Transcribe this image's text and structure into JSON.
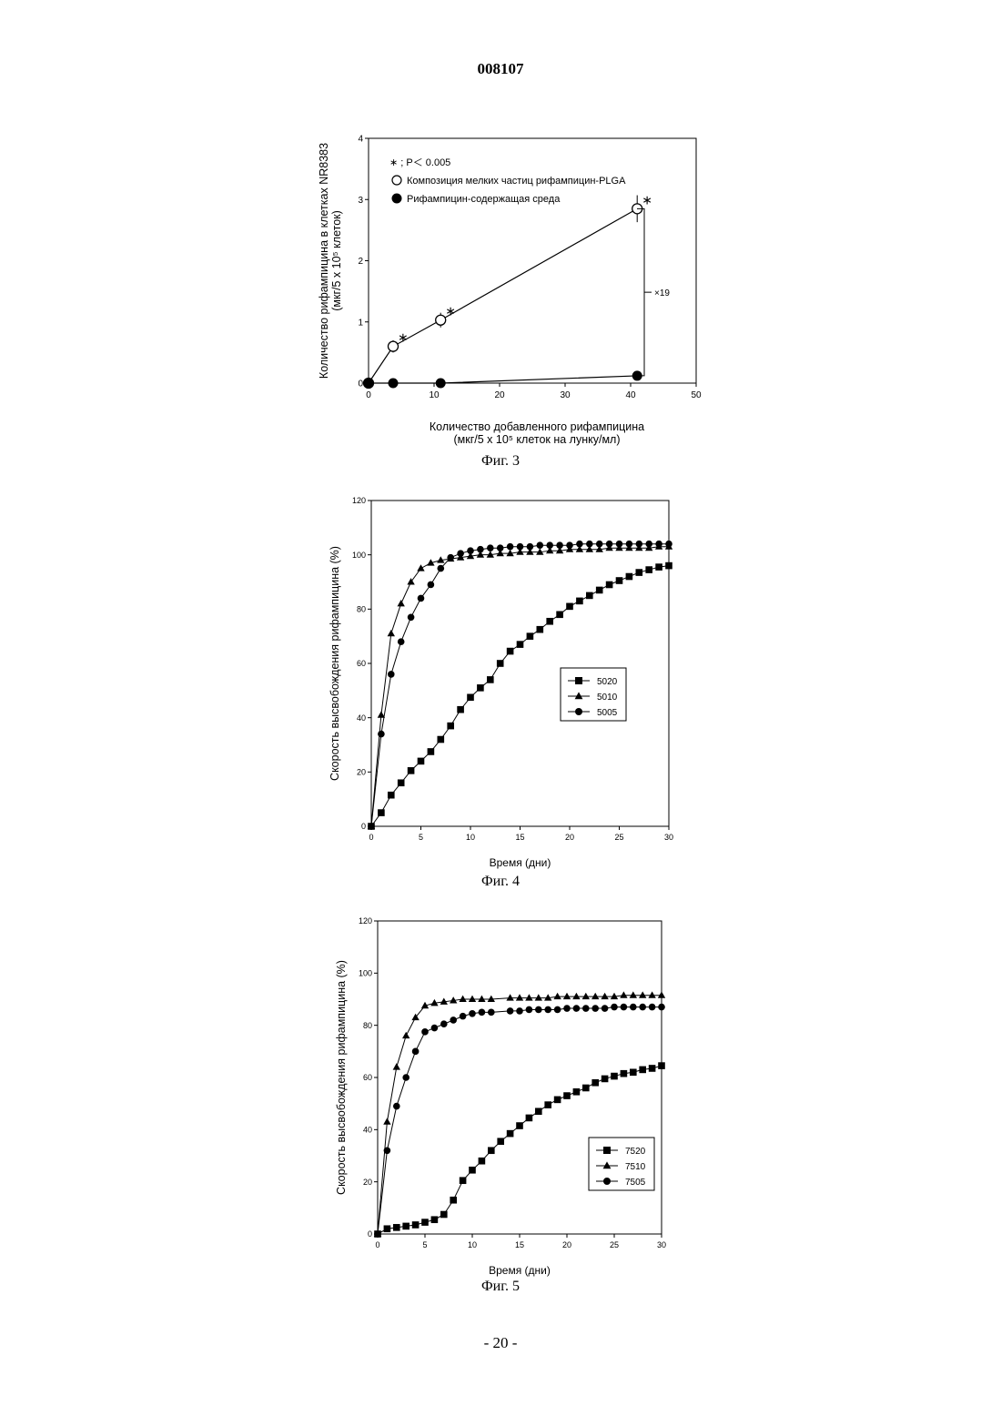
{
  "page": {
    "document_number": "008107",
    "page_number": "- 20 -"
  },
  "chart_data": [
    {
      "id": "fig3",
      "type": "scatter",
      "caption": "Фиг. 3",
      "ylabel_lines": [
        "Количество рифампицина в клетках NR8383",
        "(мкг/5 x 10⁵ клеток)"
      ],
      "xlabel_lines": [
        "Количество добавленного рифампицина",
        "(мкг/5 x 10⁵ клеток на лунку/мл)"
      ],
      "xlim": [
        0,
        50
      ],
      "ylim": [
        0,
        4
      ],
      "x_ticks": [
        0,
        10,
        20,
        30,
        40,
        50
      ],
      "y_ticks": [
        0,
        1,
        2,
        3,
        4
      ],
      "grid": false,
      "legend_position": "top-left",
      "legend_note": "∗ ; P＜ 0.005",
      "bracket_label": "×19",
      "series": [
        {
          "name": "Композиция мелких частиц рифампицин-PLGA",
          "marker": "open-circle",
          "x": [
            0,
            3.75,
            11,
            41
          ],
          "y": [
            0,
            0.6,
            1.03,
            2.85
          ],
          "err": [
            0,
            0.1,
            0.12,
            0.22
          ],
          "significant": [
            false,
            true,
            true,
            true
          ]
        },
        {
          "name": "Рифампицин-содержащая среда",
          "marker": "filled-circle",
          "x": [
            0,
            3.75,
            11,
            41
          ],
          "y": [
            0,
            0,
            0,
            0.12
          ],
          "err": [
            0,
            0,
            0,
            0
          ],
          "significant": [
            false,
            false,
            false,
            false
          ]
        }
      ]
    },
    {
      "id": "fig4",
      "type": "line",
      "caption": "Фиг. 4",
      "ylabel": "Скорость высвобождения рифампицина (%)",
      "xlabel": "Время (дни)",
      "xlim": [
        0,
        30
      ],
      "ylim": [
        0,
        120
      ],
      "x_ticks": [
        0,
        5,
        10,
        15,
        20,
        25,
        30
      ],
      "y_ticks": [
        0,
        20,
        40,
        60,
        80,
        100,
        120
      ],
      "grid": false,
      "legend_position": "center-right",
      "series": [
        {
          "name": "5020",
          "marker": "square",
          "x": [
            0,
            1,
            2,
            3,
            4,
            5,
            6,
            7,
            8,
            9,
            10,
            11,
            12,
            13,
            14,
            15,
            16,
            17,
            18,
            19,
            20,
            21,
            22,
            23,
            24,
            25,
            26,
            27,
            28,
            29,
            30
          ],
          "y": [
            0,
            5,
            11.5,
            16,
            20.5,
            24,
            27.5,
            32,
            37,
            43,
            47.5,
            51,
            54,
            60,
            64.5,
            67,
            70,
            72.5,
            75.5,
            78,
            81,
            83,
            85,
            87,
            89,
            90.5,
            92,
            93.5,
            94.5,
            95.5,
            96
          ]
        },
        {
          "name": "5010",
          "marker": "triangle",
          "x": [
            0,
            1,
            2,
            3,
            4,
            5,
            6,
            7,
            8,
            9,
            10,
            11,
            12,
            13,
            14,
            15,
            16,
            17,
            18,
            19,
            20,
            21,
            22,
            23,
            24,
            25,
            26,
            27,
            28,
            29,
            30
          ],
          "y": [
            0,
            41,
            71,
            82,
            90,
            95,
            97,
            98,
            98.5,
            99,
            99.5,
            100,
            100,
            100.5,
            100.5,
            101,
            101,
            101,
            101.5,
            101.5,
            102,
            102,
            102,
            102,
            102.5,
            102.5,
            102.5,
            102.5,
            102.5,
            103,
            103
          ]
        },
        {
          "name": "5005",
          "marker": "circle",
          "x": [
            0,
            1,
            2,
            3,
            4,
            5,
            6,
            7,
            8,
            9,
            10,
            11,
            12,
            13,
            14,
            15,
            16,
            17,
            18,
            19,
            20,
            21,
            22,
            23,
            24,
            25,
            26,
            27,
            28,
            29,
            30
          ],
          "y": [
            0,
            34,
            56,
            68,
            77,
            84,
            89,
            95,
            99,
            100.5,
            101.5,
            102,
            102.5,
            102.5,
            103,
            103,
            103,
            103.5,
            103.5,
            103.5,
            103.5,
            104,
            104,
            104,
            104,
            104,
            104,
            104,
            104,
            104,
            104
          ]
        }
      ]
    },
    {
      "id": "fig5",
      "type": "line",
      "caption": "Фиг. 5",
      "ylabel": "Скорость высвобождения рифампицина (%)",
      "xlabel": "Время (дни)",
      "xlim": [
        0,
        30
      ],
      "ylim": [
        0,
        120
      ],
      "x_ticks": [
        0,
        5,
        10,
        15,
        20,
        25,
        30
      ],
      "y_ticks": [
        0,
        20,
        40,
        60,
        80,
        100,
        120
      ],
      "grid": false,
      "legend_position": "lower-right",
      "series": [
        {
          "name": "7520",
          "marker": "square",
          "x": [
            0,
            1,
            2,
            3,
            4,
            5,
            6,
            7,
            8,
            9,
            10,
            11,
            12,
            13,
            14,
            15,
            16,
            17,
            18,
            19,
            20,
            21,
            22,
            23,
            24,
            25,
            26,
            27,
            28,
            29,
            30
          ],
          "y": [
            0,
            2,
            2.5,
            3,
            3.5,
            4.5,
            5.5,
            7.5,
            13,
            20.5,
            24.5,
            28,
            32,
            35.5,
            38.5,
            41.5,
            44.5,
            47,
            49.5,
            51.5,
            53,
            54.5,
            56,
            58,
            59.5,
            60.5,
            61.5,
            62,
            63,
            63.5,
            64.5
          ]
        },
        {
          "name": "7510",
          "marker": "triangle",
          "x": [
            0,
            1,
            2,
            3,
            4,
            5,
            6,
            7,
            8,
            9,
            10,
            11,
            12,
            14,
            15,
            16,
            17,
            18,
            19,
            20,
            21,
            22,
            23,
            24,
            25,
            26,
            27,
            28,
            29,
            30
          ],
          "y": [
            0,
            43,
            64,
            76,
            83,
            87.5,
            88.5,
            89,
            89.5,
            90,
            90,
            90,
            90,
            90.5,
            90.5,
            90.5,
            90.5,
            90.5,
            91,
            91,
            91,
            91,
            91,
            91,
            91,
            91.5,
            91.5,
            91.5,
            91.5,
            91.5
          ]
        },
        {
          "name": "7505",
          "marker": "circle",
          "x": [
            0,
            1,
            2,
            3,
            4,
            5,
            6,
            7,
            8,
            9,
            10,
            11,
            12,
            14,
            15,
            16,
            17,
            18,
            19,
            20,
            21,
            22,
            23,
            24,
            25,
            26,
            27,
            28,
            29,
            30
          ],
          "y": [
            0,
            32,
            49,
            60,
            70,
            77.5,
            79,
            80.5,
            82,
            83.5,
            84.5,
            85,
            85,
            85.5,
            85.5,
            86,
            86,
            86,
            86,
            86.5,
            86.5,
            86.5,
            86.5,
            86.5,
            87,
            87,
            87,
            87,
            87,
            87
          ]
        }
      ]
    }
  ]
}
